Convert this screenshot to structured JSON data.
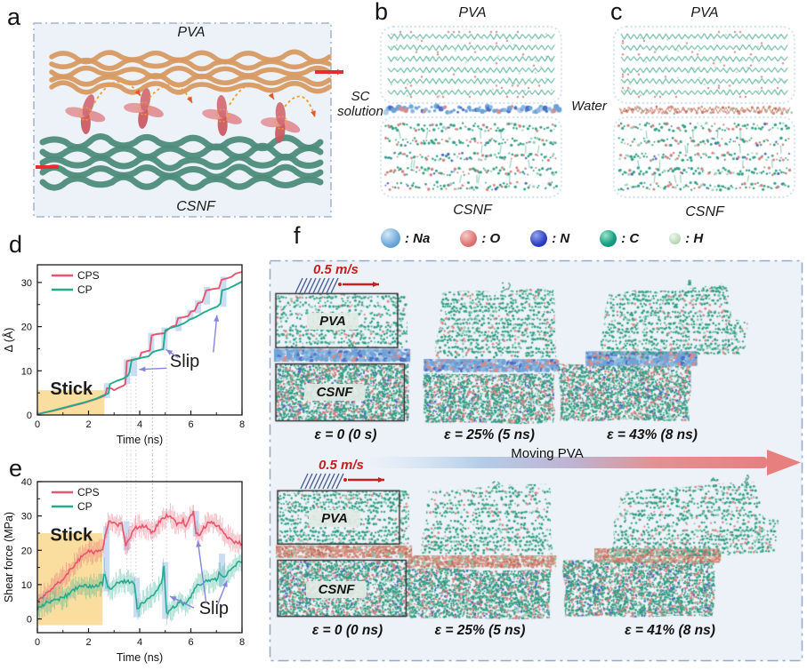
{
  "panels": {
    "a": {
      "label": "a",
      "pva": "PVA",
      "csnf": "CSNF"
    },
    "b": {
      "label": "b",
      "pva": "PVA",
      "csnf": "CSNF",
      "interface": "SC solution"
    },
    "c": {
      "label": "c",
      "pva": "PVA",
      "csnf": "CSNF",
      "interface": "Water"
    },
    "d": {
      "label": "d"
    },
    "e": {
      "label": "e"
    },
    "f": {
      "label": "f",
      "velocity": "0.5 m/s",
      "moving": "Moving PVA",
      "rows": [
        {
          "medium": "sc",
          "snapshots": [
            {
              "variant": "initial",
              "caption": "ε = 0 (0 s)",
              "pva": "PVA",
              "csnf": "CSNF"
            },
            {
              "variant": "mid",
              "caption": "ε = 25% (5 ns)"
            },
            {
              "variant": "late",
              "caption": "ε = 43% (8 ns)"
            }
          ]
        },
        {
          "medium": "water",
          "snapshots": [
            {
              "variant": "initial",
              "caption": "ε = 0 (0 ns)",
              "pva": "PVA",
              "csnf": "CSNF"
            },
            {
              "variant": "mid",
              "caption": "ε = 25% (5 ns)"
            },
            {
              "variant": "late",
              "caption": "ε = 41% (8 ns)"
            }
          ]
        }
      ]
    }
  },
  "atom_legend": {
    "items": [
      {
        "symbol": "Na",
        "label": ": Na",
        "color": "#74aede",
        "size": 22
      },
      {
        "symbol": "O",
        "label": ": O",
        "color": "#e07a7a",
        "size": 19
      },
      {
        "symbol": "N",
        "label": ": N",
        "color": "#2d3fc4",
        "size": 19
      },
      {
        "symbol": "C",
        "label": ": C",
        "color": "#17a184",
        "size": 19
      },
      {
        "symbol": "H",
        "label": ": H",
        "color": "#bcdcba",
        "size": 13
      }
    ]
  },
  "colors": {
    "cps": "#e8556d",
    "cp": "#22ab8e",
    "stick_fill": "#f8d88e",
    "slip_band": "#b7d0ee",
    "annotation_purple": "#8585de",
    "panel_bg": "#edf2f8",
    "panel_border": "#96a9c6",
    "pva_fiber": "#d89a62",
    "csnf_fiber": "#4e8c7a",
    "velocity_red": "#c41f1f"
  },
  "chart_data": [
    {
      "type": "line",
      "panel": "d",
      "xlabel": "Time (ns)",
      "ylabel": "Δ (Å)",
      "xlim": [
        0,
        8
      ],
      "ylim": [
        0,
        34
      ],
      "xticks": [
        0,
        2,
        4,
        6,
        8
      ],
      "yticks": [
        0,
        10,
        20,
        30
      ],
      "legend_position": "top-left",
      "series": [
        {
          "name": "CPS",
          "color": "#e8556d",
          "points": [
            [
              0,
              0.2
            ],
            [
              0.6,
              0.9
            ],
            [
              1.2,
              1.8
            ],
            [
              1.8,
              2.7
            ],
            [
              2.3,
              3.6
            ],
            [
              2.6,
              4.3
            ],
            [
              2.66,
              4.5
            ],
            [
              2.72,
              6.1
            ],
            [
              2.9,
              6.0
            ],
            [
              3.0,
              5.6
            ],
            [
              3.15,
              6.1
            ],
            [
              3.35,
              6.6
            ],
            [
              3.44,
              7.0
            ],
            [
              3.5,
              12.2
            ],
            [
              3.7,
              12.5
            ],
            [
              4.0,
              12.8
            ],
            [
              4.06,
              14.1
            ],
            [
              4.25,
              14.4
            ],
            [
              4.4,
              14.6
            ],
            [
              4.47,
              18.0
            ],
            [
              4.65,
              18.3
            ],
            [
              4.95,
              18.5
            ],
            [
              5.1,
              19.3
            ],
            [
              5.25,
              20.0
            ],
            [
              5.42,
              20.3
            ],
            [
              5.5,
              21.9
            ],
            [
              5.7,
              22.1
            ],
            [
              5.9,
              22.4
            ],
            [
              6.0,
              23.4
            ],
            [
              6.15,
              23.6
            ],
            [
              6.28,
              25.3
            ],
            [
              6.45,
              25.6
            ],
            [
              6.6,
              28.2
            ],
            [
              6.85,
              28.5
            ],
            [
              7.1,
              28.7
            ],
            [
              7.2,
              30.6
            ],
            [
              7.45,
              31.0
            ],
            [
              7.6,
              31.3
            ],
            [
              7.75,
              32.0
            ],
            [
              8,
              32.4
            ]
          ]
        },
        {
          "name": "CP",
          "color": "#22ab8e",
          "points": [
            [
              0,
              0.2
            ],
            [
              0.6,
              1.0
            ],
            [
              1.2,
              1.9
            ],
            [
              1.8,
              2.8
            ],
            [
              2.3,
              3.7
            ],
            [
              2.6,
              4.5
            ],
            [
              2.78,
              4.9
            ],
            [
              2.84,
              7.0
            ],
            [
              3.1,
              7.7
            ],
            [
              3.35,
              8.2
            ],
            [
              3.52,
              8.8
            ],
            [
              3.6,
              9.6
            ],
            [
              3.68,
              12.3
            ],
            [
              3.85,
              12.7
            ],
            [
              4.1,
              13.0
            ],
            [
              4.35,
              13.3
            ],
            [
              4.5,
              14.2
            ],
            [
              4.7,
              14.6
            ],
            [
              4.92,
              14.9
            ],
            [
              5.0,
              19.2
            ],
            [
              5.2,
              19.7
            ],
            [
              5.5,
              20.2
            ],
            [
              5.75,
              20.8
            ],
            [
              5.95,
              21.6
            ],
            [
              6.2,
              22.2
            ],
            [
              6.5,
              23.2
            ],
            [
              6.8,
              24.0
            ],
            [
              7.05,
              24.6
            ],
            [
              7.15,
              25.2
            ],
            [
              7.22,
              28.2
            ],
            [
              7.45,
              28.6
            ],
            [
              7.7,
              29.3
            ],
            [
              8,
              30.2
            ]
          ]
        }
      ],
      "stick": {
        "label": "Stick",
        "t0": 0,
        "t1": 2.62,
        "v0": 0,
        "v1": 5.6,
        "label_t": 0.5,
        "label_v": 4.6
      },
      "slip": {
        "label": "Slip",
        "label_t": 5.18,
        "label_v": 10.9,
        "arrows": [
          [
            5.05,
            10.6,
            3.98,
            10.3
          ],
          [
            5.5,
            13.0,
            5.03,
            14.8
          ],
          [
            6.88,
            14.2,
            7.02,
            22.6
          ]
        ]
      },
      "slip_bands": [
        [
          2.72,
          3.8,
          7.2
        ],
        [
          3.5,
          7,
          12.6
        ],
        [
          3.78,
          8.8,
          13.2
        ],
        [
          4.45,
          13.8,
          18.6
        ],
        [
          4.97,
          14.6,
          19.8
        ],
        [
          5.52,
          19,
          22.3
        ],
        [
          5.98,
          21.5,
          23.8
        ],
        [
          6.28,
          23,
          26
        ],
        [
          6.63,
          25,
          29
        ],
        [
          7.27,
          24.5,
          31.3
        ]
      ],
      "connector_times": [
        3.5,
        3.65,
        3.85,
        4.5,
        5.05
      ]
    },
    {
      "type": "line",
      "panel": "e",
      "xlabel": "Time (ns)",
      "ylabel": "Shear force (MPa)",
      "xlim": [
        0,
        8
      ],
      "ylim": [
        -4,
        40
      ],
      "xticks": [
        0,
        2,
        4,
        6,
        8
      ],
      "yticks": [
        0,
        10,
        20,
        30,
        40
      ],
      "legend_position": "top-left",
      "noisy": true,
      "series": [
        {
          "name": "CPS",
          "color": "#e8556d",
          "points": [
            [
              0,
              5
            ],
            [
              0.3,
              7
            ],
            [
              0.6,
              9
            ],
            [
              0.9,
              11
            ],
            [
              1.2,
              13.5
            ],
            [
              1.5,
              16
            ],
            [
              1.8,
              19
            ],
            [
              2.0,
              19.5
            ],
            [
              2.3,
              19.5
            ],
            [
              2.55,
              19.7
            ],
            [
              2.7,
              26
            ],
            [
              2.8,
              28.5
            ],
            [
              3.0,
              28
            ],
            [
              3.1,
              27
            ],
            [
              3.3,
              28
            ],
            [
              3.45,
              21.5
            ],
            [
              3.6,
              23
            ],
            [
              3.8,
              26.5
            ],
            [
              4.0,
              27
            ],
            [
              4.2,
              27
            ],
            [
              4.4,
              26
            ],
            [
              4.5,
              25
            ],
            [
              4.7,
              27.5
            ],
            [
              4.9,
              29.5
            ],
            [
              5.1,
              30
            ],
            [
              5.2,
              30.5
            ],
            [
              5.4,
              28
            ],
            [
              5.5,
              27.5
            ],
            [
              5.7,
              28.5
            ],
            [
              5.8,
              26.5
            ],
            [
              6.0,
              30
            ],
            [
              6.1,
              31.5
            ],
            [
              6.2,
              25
            ],
            [
              6.35,
              24.5
            ],
            [
              6.5,
              26.5
            ],
            [
              6.7,
              28
            ],
            [
              6.9,
              28
            ],
            [
              7.1,
              27
            ],
            [
              7.3,
              25
            ],
            [
              7.5,
              23.5
            ],
            [
              7.7,
              22.5
            ],
            [
              8,
              22
            ]
          ]
        },
        {
          "name": "CP",
          "color": "#22ab8e",
          "points": [
            [
              0,
              3
            ],
            [
              0.3,
              4.5
            ],
            [
              0.6,
              5.5
            ],
            [
              0.9,
              6
            ],
            [
              1.2,
              7
            ],
            [
              1.5,
              9
            ],
            [
              1.8,
              9.5
            ],
            [
              2.1,
              9.5
            ],
            [
              2.4,
              10
            ],
            [
              2.55,
              10.5
            ],
            [
              2.62,
              14.5
            ],
            [
              2.75,
              9
            ],
            [
              2.9,
              8.5
            ],
            [
              3.1,
              10.5
            ],
            [
              3.3,
              11
            ],
            [
              3.5,
              11
            ],
            [
              3.7,
              10.5
            ],
            [
              3.8,
              10
            ],
            [
              3.9,
              3
            ],
            [
              4.1,
              4.5
            ],
            [
              4.3,
              6
            ],
            [
              4.5,
              7
            ],
            [
              4.7,
              8.5
            ],
            [
              4.85,
              10
            ],
            [
              4.95,
              15.5
            ],
            [
              5.05,
              1.5
            ],
            [
              5.2,
              2.5
            ],
            [
              5.4,
              4
            ],
            [
              5.6,
              5
            ],
            [
              5.8,
              4
            ],
            [
              6.0,
              6.5
            ],
            [
              6.2,
              9.5
            ],
            [
              6.4,
              10
            ],
            [
              6.6,
              11
            ],
            [
              6.8,
              11
            ],
            [
              7.0,
              11.5
            ],
            [
              7.1,
              13
            ],
            [
              7.25,
              12
            ],
            [
              7.4,
              13
            ],
            [
              7.6,
              14.5
            ],
            [
              7.8,
              16
            ],
            [
              8,
              17
            ]
          ]
        }
      ],
      "stick": {
        "label": "Stick",
        "t0": 0,
        "t1": 2.55,
        "v0": -1.8,
        "v1": 25,
        "label_t": 0.5,
        "label_v": 22.8
      },
      "slip": {
        "label": "Slip",
        "label_t": 6.32,
        "label_v": 1.4,
        "arrows": [
          [
            6.12,
            3.2,
            5.18,
            6.6
          ],
          [
            6.6,
            4.6,
            6.27,
            22.8
          ],
          [
            7.05,
            4.2,
            7.42,
            11.2
          ]
        ]
      },
      "slip_bands": [
        [
          2.7,
          8,
          27
        ],
        [
          3.48,
          20,
          28.5
        ],
        [
          3.88,
          0.5,
          12
        ],
        [
          5.0,
          0,
          16.5
        ],
        [
          6.2,
          24,
          31.5
        ],
        [
          7.22,
          9.5,
          19
        ]
      ],
      "connector_times": [
        3.5,
        3.65,
        3.85,
        4.5,
        5.05
      ]
    }
  ]
}
